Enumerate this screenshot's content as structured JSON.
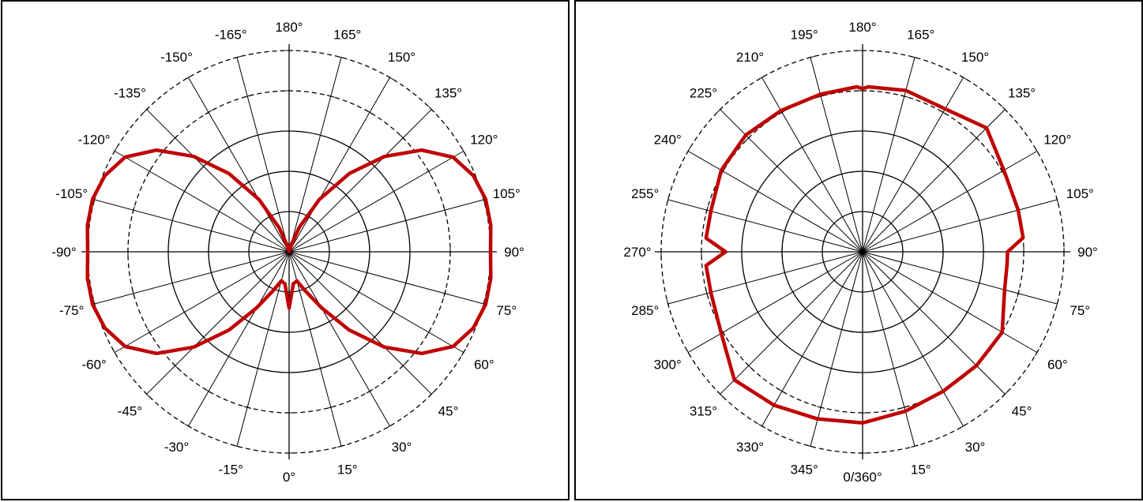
{
  "chart_data": [
    {
      "type": "polar-line",
      "title": "",
      "radial_rings": 5,
      "angle_step_deg": 15,
      "outer_ring_dashed": 2,
      "angle_labels": [
        {
          "angle": 0,
          "text": "0°"
        },
        {
          "angle": 15,
          "text": "15°"
        },
        {
          "angle": 30,
          "text": "30°"
        },
        {
          "angle": 45,
          "text": "45°"
        },
        {
          "angle": 60,
          "text": "60°"
        },
        {
          "angle": 75,
          "text": "75°"
        },
        {
          "angle": 90,
          "text": "90°"
        },
        {
          "angle": 105,
          "text": "105°"
        },
        {
          "angle": 120,
          "text": "120°"
        },
        {
          "angle": 135,
          "text": "135°"
        },
        {
          "angle": 150,
          "text": "150°"
        },
        {
          "angle": 165,
          "text": "165°"
        },
        {
          "angle": 180,
          "text": "180°"
        },
        {
          "angle": 195,
          "text": "-165°"
        },
        {
          "angle": 210,
          "text": "-150°"
        },
        {
          "angle": 225,
          "text": "-135°"
        },
        {
          "angle": 240,
          "text": "-120°"
        },
        {
          "angle": 255,
          "text": "-105°"
        },
        {
          "angle": 270,
          "text": "-90°"
        },
        {
          "angle": 285,
          "text": "-75°"
        },
        {
          "angle": 300,
          "text": "-60°"
        },
        {
          "angle": 315,
          "text": "-45°"
        },
        {
          "angle": 330,
          "text": "-30°"
        },
        {
          "angle": 345,
          "text": "-15°"
        }
      ],
      "series": [
        {
          "color": "#c00000",
          "angles": [
            0,
            7.5,
            15,
            22.5,
            30,
            37.5,
            45,
            52.5,
            60,
            67.5,
            75,
            82.5,
            90,
            97.5,
            105,
            112.5,
            120,
            127.5,
            135,
            142.5,
            150,
            157.5,
            165,
            172.5,
            180,
            187.5,
            195,
            202.5,
            210,
            217.5,
            225,
            232.5,
            240,
            247.5,
            255,
            262.5,
            270,
            277.5,
            285,
            292.5,
            300,
            307.5,
            315,
            322.5,
            330,
            337.5,
            345,
            352.5
          ],
          "r": [
            0.28,
            0.16,
            0.15,
            0.21,
            0.32,
            0.49,
            0.67,
            0.83,
            0.94,
            0.99,
            1.01,
            1.01,
            1.0,
            1.01,
            1.01,
            0.99,
            0.94,
            0.83,
            0.67,
            0.49,
            0.3,
            0.13,
            0.03,
            0.0,
            0.0,
            0.0,
            0.03,
            0.13,
            0.3,
            0.49,
            0.67,
            0.83,
            0.94,
            0.99,
            1.01,
            1.01,
            1.0,
            1.01,
            1.01,
            0.99,
            0.94,
            0.83,
            0.67,
            0.49,
            0.32,
            0.21,
            0.15,
            0.16
          ]
        }
      ]
    },
    {
      "type": "polar-line",
      "title": "",
      "radial_rings": 5,
      "angle_step_deg": 15,
      "outer_ring_dashed": 2,
      "angle_labels": [
        {
          "angle": 0,
          "text": "0/360°"
        },
        {
          "angle": 15,
          "text": "15°"
        },
        {
          "angle": 30,
          "text": "30°"
        },
        {
          "angle": 45,
          "text": "45°"
        },
        {
          "angle": 60,
          "text": "60°"
        },
        {
          "angle": 75,
          "text": "75°"
        },
        {
          "angle": 90,
          "text": "90°"
        },
        {
          "angle": 105,
          "text": "105°"
        },
        {
          "angle": 120,
          "text": "120°"
        },
        {
          "angle": 135,
          "text": "135°"
        },
        {
          "angle": 150,
          "text": "150°"
        },
        {
          "angle": 165,
          "text": "165°"
        },
        {
          "angle": 180,
          "text": "180°"
        },
        {
          "angle": 195,
          "text": "195°"
        },
        {
          "angle": 210,
          "text": "210°"
        },
        {
          "angle": 225,
          "text": "225°"
        },
        {
          "angle": 240,
          "text": "240°"
        },
        {
          "angle": 255,
          "text": "255°"
        },
        {
          "angle": 270,
          "text": "270°"
        },
        {
          "angle": 285,
          "text": "285°"
        },
        {
          "angle": 300,
          "text": "300°"
        },
        {
          "angle": 315,
          "text": "315°"
        },
        {
          "angle": 330,
          "text": "330°"
        },
        {
          "angle": 345,
          "text": "345°"
        }
      ],
      "series": [
        {
          "color": "#c00000",
          "angles": [
            0,
            15,
            30,
            45,
            60,
            75,
            85,
            90,
            95,
            105,
            120,
            135,
            150,
            165,
            178,
            180,
            182,
            195,
            210,
            225,
            240,
            255,
            265,
            270,
            275,
            285,
            300,
            315,
            330,
            345
          ],
          "r": [
            0.85,
            0.82,
            0.8,
            0.8,
            0.8,
            0.73,
            0.72,
            0.72,
            0.8,
            0.8,
            0.81,
            0.87,
            0.82,
            0.83,
            0.82,
            0.81,
            0.82,
            0.81,
            0.81,
            0.82,
            0.81,
            0.78,
            0.78,
            0.68,
            0.78,
            0.78,
            0.81,
            0.9,
            0.88,
            0.86
          ]
        }
      ]
    }
  ]
}
